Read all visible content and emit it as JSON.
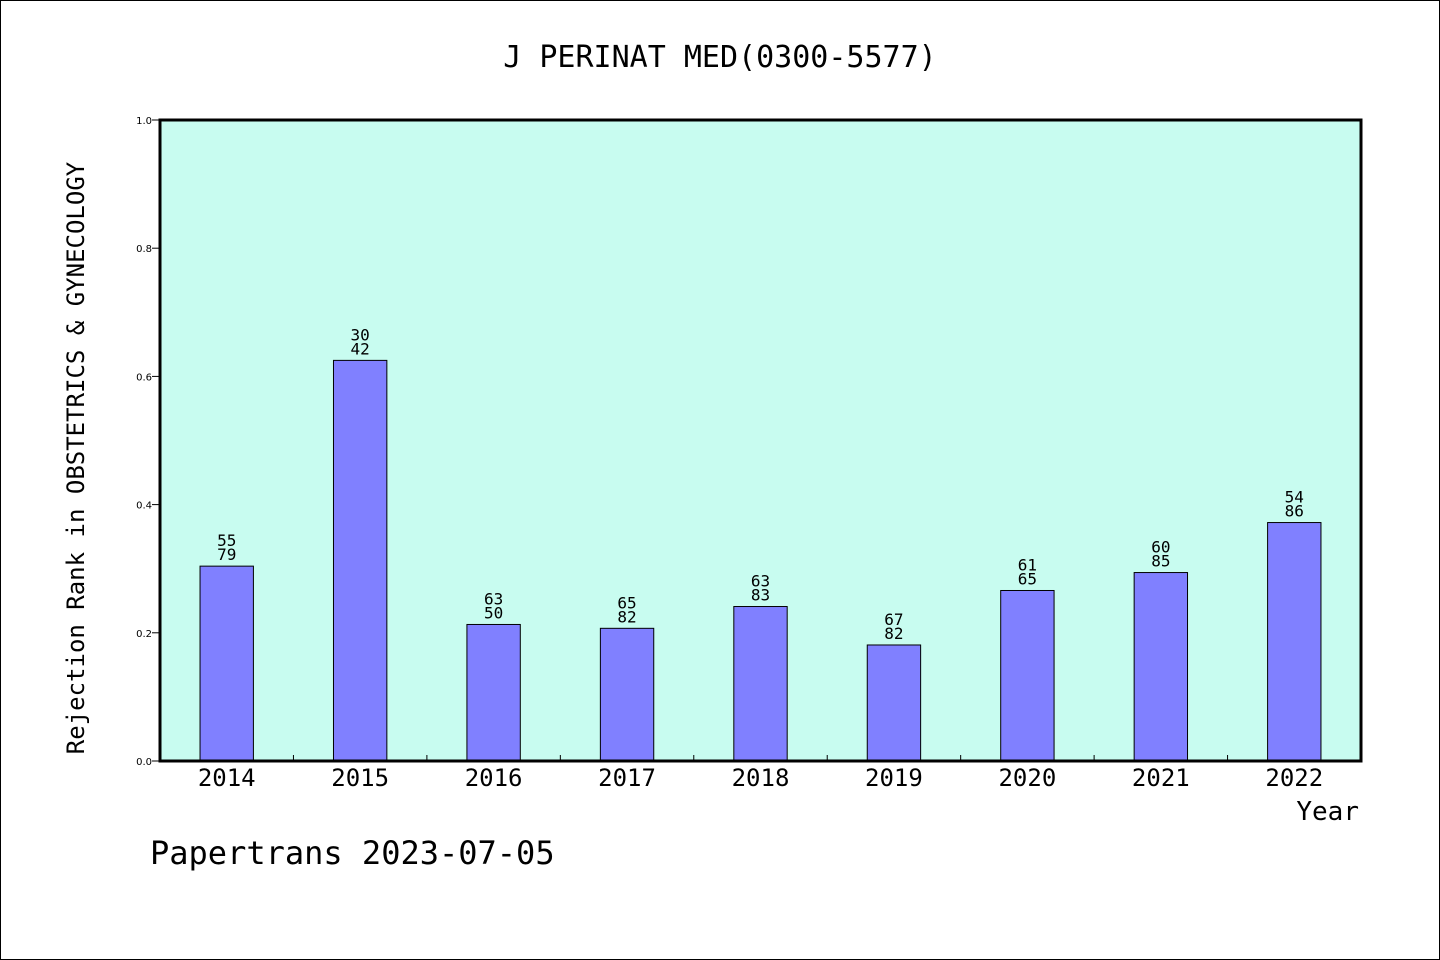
{
  "chart_data": {
    "type": "bar",
    "title": "J PERINAT MED(0300-5577)",
    "xlabel": "Year",
    "ylabel": "Rejection Rank in OBSTETRICS & GYNECOLOGY",
    "ylim": [
      0,
      1.0
    ],
    "yticks": [
      "0.0",
      "0.2",
      "0.4",
      "0.6",
      "0.8",
      "1.0"
    ],
    "grid": false,
    "categories": [
      "2014",
      "2015",
      "2016",
      "2017",
      "2018",
      "2019",
      "2020",
      "2021",
      "2022"
    ],
    "values": [
      0.304,
      0.625,
      0.213,
      0.207,
      0.241,
      0.181,
      0.266,
      0.294,
      0.372
    ],
    "labels_top": [
      "55",
      "30",
      "63",
      "65",
      "63",
      "67",
      "61",
      "60",
      "54"
    ],
    "labels_bottom": [
      "79",
      "42",
      "50",
      "82",
      "83",
      "82",
      "65",
      "85",
      "86"
    ],
    "colors": {
      "plot_background": "#c8fcf0",
      "bar_fill": "#8080ff",
      "bar_stroke": "#000000"
    }
  },
  "footer": "Papertrans 2023-07-05"
}
